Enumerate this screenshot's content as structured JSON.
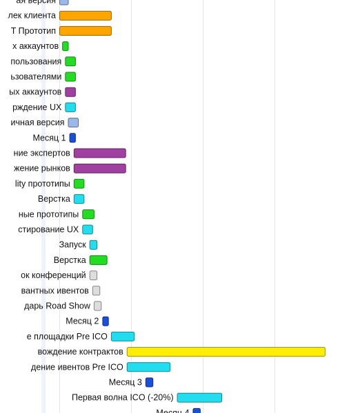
{
  "chart_data": {
    "type": "bar",
    "orientation": "horizontal",
    "style": "gantt",
    "title": "",
    "xlabel": "",
    "ylabel": "",
    "grid": true,
    "gridlines_x": [
      0,
      5,
      10,
      15,
      20,
      25,
      30,
      35
    ],
    "xlim": [
      -0.3,
      35.5
    ],
    "tasks": [
      {
        "label": "ая версия",
        "start": 0.0,
        "end": 0.6,
        "color": "#9ab8e8"
      },
      {
        "label": "лек клиента",
        "start": 0.0,
        "end": 3.6,
        "color": "#ffa500"
      },
      {
        "label": "T Прототип",
        "start": 0.0,
        "end": 3.6,
        "color": "#ffa500"
      },
      {
        "label": "х аккаунтов",
        "start": 0.2,
        "end": 0.6,
        "color": "#22dd22"
      },
      {
        "label": "пользования",
        "start": 0.4,
        "end": 1.1,
        "color": "#22dd22"
      },
      {
        "label": "ьзователями",
        "start": 0.4,
        "end": 1.1,
        "color": "#22dd22"
      },
      {
        "label": "ых аккаунтов",
        "start": 0.4,
        "end": 1.1,
        "color": "#a040a0"
      },
      {
        "label": "рждение UX",
        "start": 0.4,
        "end": 1.1,
        "color": "#22ddee"
      },
      {
        "label": "ичная версия",
        "start": 0.6,
        "end": 1.3,
        "color": "#9ab8e8"
      },
      {
        "label": "Месяц 1",
        "start": 0.7,
        "end": 1.1,
        "color": "#1a4fd8"
      },
      {
        "label": "ние экспертов",
        "start": 1.0,
        "end": 4.6,
        "color": "#a040a0"
      },
      {
        "label": "жение рынков",
        "start": 1.0,
        "end": 4.6,
        "color": "#a040a0"
      },
      {
        "label": "lity прототипы",
        "start": 1.0,
        "end": 1.7,
        "color": "#22dd22"
      },
      {
        "label": "Верстка",
        "start": 1.0,
        "end": 1.7,
        "color": "#22ddee"
      },
      {
        "label": "ные прототипы",
        "start": 1.6,
        "end": 2.4,
        "color": "#22dd22"
      },
      {
        "label": "стирование UX",
        "start": 1.6,
        "end": 2.3,
        "color": "#22ddee"
      },
      {
        "label": "Запуск",
        "start": 2.1,
        "end": 2.6,
        "color": "#22ddee"
      },
      {
        "label": "Верстка",
        "start": 2.1,
        "end": 3.3,
        "color": "#22dd22"
      },
      {
        "label": "ок конференций",
        "start": 2.1,
        "end": 2.6,
        "color": "#dddddd"
      },
      {
        "label": "вантных ивентов",
        "start": 2.3,
        "end": 2.8,
        "color": "#dddddd"
      },
      {
        "label": "дарь Road Show",
        "start": 2.4,
        "end": 2.9,
        "color": "#dddddd"
      },
      {
        "label": "Месяц 2",
        "start": 3.0,
        "end": 3.4,
        "color": "#1a4fd8"
      },
      {
        "label": "е площадки Pre ICO",
        "start": 3.6,
        "end": 5.2,
        "color": "#22ddee"
      },
      {
        "label": "вождение контрактов",
        "start": 4.7,
        "end": 18.5,
        "color": "#ffee00"
      },
      {
        "label": "дение ивентов Pre ICO",
        "start": 4.7,
        "end": 7.7,
        "color": "#22ddee"
      },
      {
        "label": "Месяц 3",
        "start": 6.0,
        "end": 6.5,
        "color": "#1a4fd8"
      },
      {
        "label": "Первая волна ICO (-20%)",
        "start": 8.2,
        "end": 11.3,
        "color": "#22ddee"
      },
      {
        "label": "Месяц 4",
        "start": 9.3,
        "end": 9.8,
        "color": "#1a4fd8"
      }
    ]
  }
}
